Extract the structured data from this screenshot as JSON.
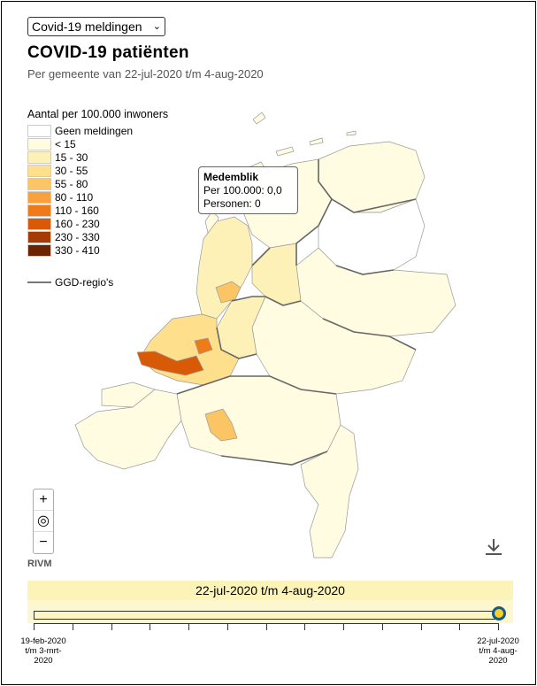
{
  "dropdown": {
    "selected": "Covid-19 meldingen",
    "chevron_icon": "chevron-down-icon"
  },
  "header": {
    "title": "COVID-19 patiënten",
    "subtitle": "Per gemeente van 22-jul-2020 t/m 4-aug-2020"
  },
  "legend": {
    "title": "Aantal per 100.000 inwoners",
    "items": [
      {
        "label": "Geen meldingen",
        "color": "#ffffff"
      },
      {
        "label": "< 15",
        "color": "#fffce1"
      },
      {
        "label": "15 - 30",
        "color": "#fdf1b8"
      },
      {
        "label": "30 - 55",
        "color": "#fddf8c"
      },
      {
        "label": "55 - 80",
        "color": "#fbc464"
      },
      {
        "label": "80 - 110",
        "color": "#f7a03c"
      },
      {
        "label": "110 - 160",
        "color": "#ef7a1a"
      },
      {
        "label": "160 - 230",
        "color": "#d95a06"
      },
      {
        "label": "230 - 330",
        "color": "#a53d03"
      },
      {
        "label": "330 - 410",
        "color": "#6b2300"
      }
    ],
    "ggd_label": "GGD-regio's"
  },
  "tooltip": {
    "name": "Medemblik",
    "per_100k": "Per 100.000: 0,0",
    "persons": "Personen: 0"
  },
  "zoom": {
    "in": "+",
    "reset_icon": "target-icon",
    "out": "−"
  },
  "source": "RIVM",
  "download_icon": "download-icon",
  "timeline": {
    "current": "22-jul-2020 t/m 4-aug-2020",
    "start_label": "19-feb-2020 t/m 3-mrt-2020",
    "end_label": "22-jul-2020 t/m 4-aug-2020",
    "position_fraction": 1.0
  }
}
